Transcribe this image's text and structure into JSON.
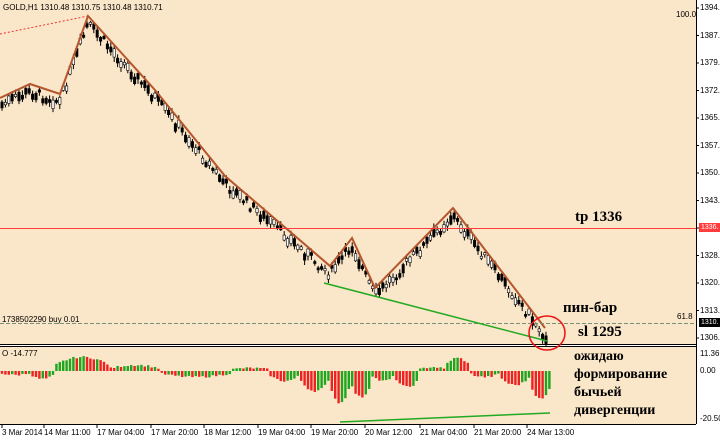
{
  "header": {
    "symbol_line": "GOLD,H1  1310.48 1310.75 1310.48 1310.71",
    "oscillator_label": "O -14.777",
    "scale_top_marker": "100.0",
    "order_line_label": "1738502290 buy 0.01",
    "fib_level": "61.8"
  },
  "annotations": {
    "tp": "tp 1336",
    "pinbar": "пин-бар",
    "sl": "sl 1295",
    "comment_lines": [
      "ожидаю",
      "формирование",
      "бычьей",
      "дивергенции"
    ]
  },
  "price_axis": {
    "labels": [
      "1394.",
      "1387.",
      "1379.",
      "1372.",
      "1365.",
      "1357.",
      "1350.",
      "1343.",
      "1336.",
      "1328.",
      "1320.",
      "1313.",
      "1306."
    ],
    "tp_badge": "1336.",
    "current_badge": "1310."
  },
  "osc_axis": {
    "labels": [
      "11.36",
      "0.00",
      "-20.50"
    ]
  },
  "time_axis": {
    "labels": [
      "3 Mar 2014",
      "14 Mar 11:00",
      "17 Mar 04:00",
      "17 Mar 20:00",
      "18 Mar 12:00",
      "19 Mar 04:00",
      "19 Mar 20:00",
      "20 Mar 12:00",
      "21 Mar 04:00",
      "21 Mar 20:00",
      "24 Mar 13:00"
    ]
  },
  "colors": {
    "chart_bg": "#fae6c8",
    "candle": "#000000",
    "zigzag": "#b4552d",
    "divergence": "#22aa22",
    "tp_line": "#ff3b3b",
    "order_line": "#7a8f7a",
    "circle": "#ee1111",
    "hist_pos": "#1fa61f",
    "hist_neg": "#ee2222"
  }
}
